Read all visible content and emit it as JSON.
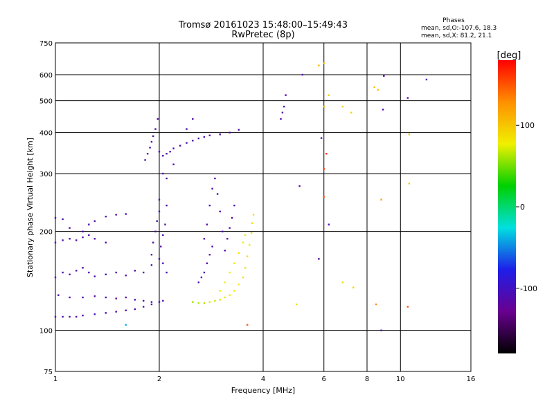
{
  "header": {
    "title_line1": "Tromsø 20161023 15:48:00–15:49:43",
    "title_line2": "RwPretec (8p)",
    "stats_title": "Phases",
    "stats_line1": "mean, sd,O:-107.6, 18.3",
    "stats_line2": "mean, sd,X:  81.2, 21.1"
  },
  "colorbar": {
    "label": "[deg]",
    "ticks": [
      {
        "label": "100",
        "value": 100
      },
      {
        "label": "0",
        "value": 0
      },
      {
        "label": "-100",
        "value": -100
      }
    ],
    "range": [
      -180,
      180
    ],
    "colors": [
      "#000000",
      "#6a0090",
      "#1e1ee8",
      "#00e0e0",
      "#00d000",
      "#f0f000",
      "#ff9000",
      "#ff0000"
    ]
  },
  "chart_data": {
    "type": "scatter",
    "xlabel": "Frequency [MHz]",
    "ylabel": "Stationary phase Virtual Height [km]",
    "xscale": "log",
    "yscale": "log",
    "xlim": [
      1,
      16
    ],
    "ylim": [
      75,
      750
    ],
    "xticks": [
      {
        "label": "1",
        "value": 1
      },
      {
        "label": "2",
        "value": 2
      },
      {
        "label": "4",
        "value": 4
      },
      {
        "label": "6",
        "value": 6
      },
      {
        "label": "8",
        "value": 8
      },
      {
        "label": "10",
        "value": 10
      },
      {
        "label": "16",
        "value": 16
      }
    ],
    "yticks": [
      {
        "label": "75",
        "value": 75
      },
      {
        "label": "100",
        "value": 100
      },
      {
        "label": "200",
        "value": 200
      },
      {
        "label": "300",
        "value": 300
      },
      {
        "label": "400",
        "value": 400
      },
      {
        "label": "500",
        "value": 500
      },
      {
        "label": "600",
        "value": 600
      },
      {
        "label": "750",
        "value": 750
      }
    ],
    "grid": true,
    "series": [
      {
        "mode": "O",
        "points": [
          [
            1.0,
            110,
            -112
          ],
          [
            1.05,
            110,
            -110
          ],
          [
            1.1,
            110,
            -108
          ],
          [
            1.15,
            110,
            -115
          ],
          [
            1.2,
            111,
            -110
          ],
          [
            1.3,
            112,
            -105
          ],
          [
            1.4,
            113,
            -110
          ],
          [
            1.5,
            114,
            -112
          ],
          [
            1.6,
            115,
            -108
          ],
          [
            1.7,
            116,
            -110
          ],
          [
            1.8,
            118,
            -115
          ],
          [
            1.9,
            120,
            -105
          ],
          [
            2.0,
            122,
            -110
          ],
          [
            2.05,
            123,
            -108
          ],
          [
            1.02,
            128,
            -112
          ],
          [
            1.1,
            126,
            -110
          ],
          [
            1.2,
            126,
            -105
          ],
          [
            1.3,
            127,
            -115
          ],
          [
            1.4,
            126,
            -110
          ],
          [
            1.5,
            125,
            -120
          ],
          [
            1.6,
            126,
            -112
          ],
          [
            1.7,
            124,
            -108
          ],
          [
            1.8,
            123,
            -110
          ],
          [
            1.9,
            122,
            -115
          ],
          [
            1.0,
            145,
            -110
          ],
          [
            1.05,
            150,
            -105
          ],
          [
            1.1,
            148,
            -112
          ],
          [
            1.15,
            152,
            -110
          ],
          [
            1.2,
            155,
            -118
          ],
          [
            1.25,
            150,
            -110
          ],
          [
            1.3,
            146,
            -112
          ],
          [
            1.4,
            148,
            -105
          ],
          [
            1.5,
            150,
            -112
          ],
          [
            1.6,
            147,
            -110
          ],
          [
            1.7,
            152,
            -115
          ],
          [
            1.8,
            150,
            -110
          ],
          [
            1.9,
            158,
            -105
          ],
          [
            2.0,
            165,
            -112
          ],
          [
            1.0,
            185,
            -112
          ],
          [
            1.05,
            188,
            -110
          ],
          [
            1.1,
            190,
            -108
          ],
          [
            1.15,
            188,
            -115
          ],
          [
            1.2,
            192,
            -110
          ],
          [
            1.25,
            195,
            -120
          ],
          [
            1.3,
            190,
            -112
          ],
          [
            1.4,
            185,
            -110
          ],
          [
            1.0,
            220,
            -105
          ],
          [
            1.05,
            218,
            -110
          ],
          [
            1.1,
            205,
            -112
          ],
          [
            1.2,
            200,
            -115
          ],
          [
            1.25,
            210,
            -110
          ],
          [
            1.3,
            215,
            -108
          ],
          [
            1.4,
            222,
            -110
          ],
          [
            1.5,
            225,
            -112
          ],
          [
            1.6,
            226,
            -105
          ],
          [
            1.9,
            170,
            -110
          ],
          [
            1.92,
            185,
            -108
          ],
          [
            1.95,
            200,
            -112
          ],
          [
            1.97,
            215,
            -110
          ],
          [
            2.0,
            230,
            -105
          ],
          [
            2.0,
            250,
            -112
          ],
          [
            2.02,
            180,
            -115
          ],
          [
            2.05,
            195,
            -110
          ],
          [
            2.05,
            160,
            -108
          ],
          [
            2.08,
            210,
            -112
          ],
          [
            2.1,
            240,
            -110
          ],
          [
            2.1,
            150,
            -105
          ],
          [
            1.82,
            330,
            -110
          ],
          [
            1.85,
            345,
            -112
          ],
          [
            1.88,
            360,
            -108
          ],
          [
            1.9,
            375,
            -110
          ],
          [
            1.92,
            390,
            -115
          ],
          [
            1.95,
            410,
            -110
          ],
          [
            1.98,
            440,
            -112
          ],
          [
            2.0,
            350,
            -110
          ],
          [
            2.05,
            340,
            -108
          ],
          [
            2.1,
            345,
            -112
          ],
          [
            2.15,
            350,
            -110
          ],
          [
            2.2,
            358,
            -105
          ],
          [
            2.3,
            365,
            -112
          ],
          [
            2.4,
            372,
            -110
          ],
          [
            2.5,
            378,
            -108
          ],
          [
            2.6,
            384,
            -112
          ],
          [
            2.7,
            388,
            -110
          ],
          [
            2.8,
            392,
            -115
          ],
          [
            3.0,
            395,
            -110
          ],
          [
            3.2,
            400,
            -112
          ],
          [
            3.4,
            408,
            -110
          ],
          [
            2.05,
            300,
            -110
          ],
          [
            2.1,
            290,
            -112
          ],
          [
            2.2,
            320,
            -108
          ],
          [
            2.4,
            410,
            -110
          ],
          [
            2.5,
            440,
            -112
          ],
          [
            2.7,
            190,
            -110
          ],
          [
            2.75,
            210,
            -112
          ],
          [
            2.8,
            240,
            -108
          ],
          [
            2.85,
            270,
            -110
          ],
          [
            2.9,
            290,
            -115
          ],
          [
            2.95,
            260,
            -110
          ],
          [
            3.0,
            230,
            -112
          ],
          [
            3.05,
            200,
            -110
          ],
          [
            2.6,
            140,
            -110
          ],
          [
            2.65,
            145,
            -112
          ],
          [
            2.7,
            150,
            -108
          ],
          [
            2.75,
            160,
            -110
          ],
          [
            2.8,
            170,
            -115
          ],
          [
            2.85,
            180,
            -110
          ],
          [
            3.1,
            175,
            -112
          ],
          [
            3.15,
            190,
            -110
          ],
          [
            3.2,
            205,
            -108
          ],
          [
            3.25,
            220,
            -110
          ],
          [
            3.3,
            240,
            -112
          ],
          [
            4.5,
            440,
            -110
          ],
          [
            4.55,
            460,
            -112
          ],
          [
            4.6,
            480,
            -108
          ],
          [
            4.65,
            520,
            -110
          ],
          [
            5.2,
            600,
            -112
          ],
          [
            5.1,
            275,
            -110
          ],
          [
            5.9,
            385,
            -108
          ],
          [
            6.2,
            210,
            -110
          ],
          [
            5.8,
            165,
            -112
          ],
          [
            8.9,
            470,
            -108
          ],
          [
            10.5,
            510,
            -110
          ],
          [
            11.9,
            580,
            -112
          ],
          [
            8.95,
            595,
            -110
          ],
          [
            8.8,
            100,
            -108
          ]
        ]
      },
      {
        "mode": "X",
        "points": [
          [
            2.5,
            122,
            60
          ],
          [
            2.6,
            121,
            62
          ],
          [
            2.7,
            121,
            65
          ],
          [
            2.8,
            122,
            70
          ],
          [
            2.9,
            123,
            68
          ],
          [
            3.0,
            124,
            72
          ],
          [
            3.1,
            126,
            75
          ],
          [
            3.2,
            128,
            78
          ],
          [
            3.3,
            132,
            80
          ],
          [
            3.4,
            138,
            82
          ],
          [
            3.5,
            145,
            85
          ],
          [
            3.55,
            155,
            83
          ],
          [
            3.6,
            168,
            86
          ],
          [
            3.65,
            182,
            82
          ],
          [
            3.7,
            198,
            85
          ],
          [
            3.72,
            212,
            88
          ],
          [
            3.75,
            225,
            86
          ],
          [
            3.0,
            132,
            75
          ],
          [
            3.1,
            140,
            78
          ],
          [
            3.2,
            150,
            80
          ],
          [
            3.3,
            160,
            82
          ],
          [
            3.4,
            172,
            84
          ],
          [
            3.5,
            185,
            80
          ],
          [
            3.55,
            195,
            82
          ],
          [
            5.0,
            120,
            88
          ],
          [
            6.8,
            140,
            92
          ],
          [
            7.3,
            135,
            95
          ],
          [
            6.0,
            480,
            100
          ],
          [
            6.2,
            520,
            98
          ],
          [
            6.8,
            480,
            96
          ],
          [
            7.2,
            460,
            94
          ],
          [
            8.4,
            550,
            102
          ],
          [
            8.6,
            540,
            104
          ],
          [
            10.6,
            395,
            100
          ],
          [
            10.6,
            280,
            98
          ],
          [
            6.0,
            650,
            104
          ],
          [
            5.8,
            640,
            106
          ],
          [
            10.5,
            118,
            150
          ],
          [
            8.5,
            120,
            130
          ],
          [
            1.6,
            104,
            -40
          ],
          [
            3.6,
            104,
            150
          ],
          [
            6.0,
            255,
            150
          ],
          [
            6.0,
            310,
            160
          ],
          [
            6.1,
            345,
            165
          ],
          [
            8.8,
            250,
            120
          ]
        ]
      }
    ]
  }
}
